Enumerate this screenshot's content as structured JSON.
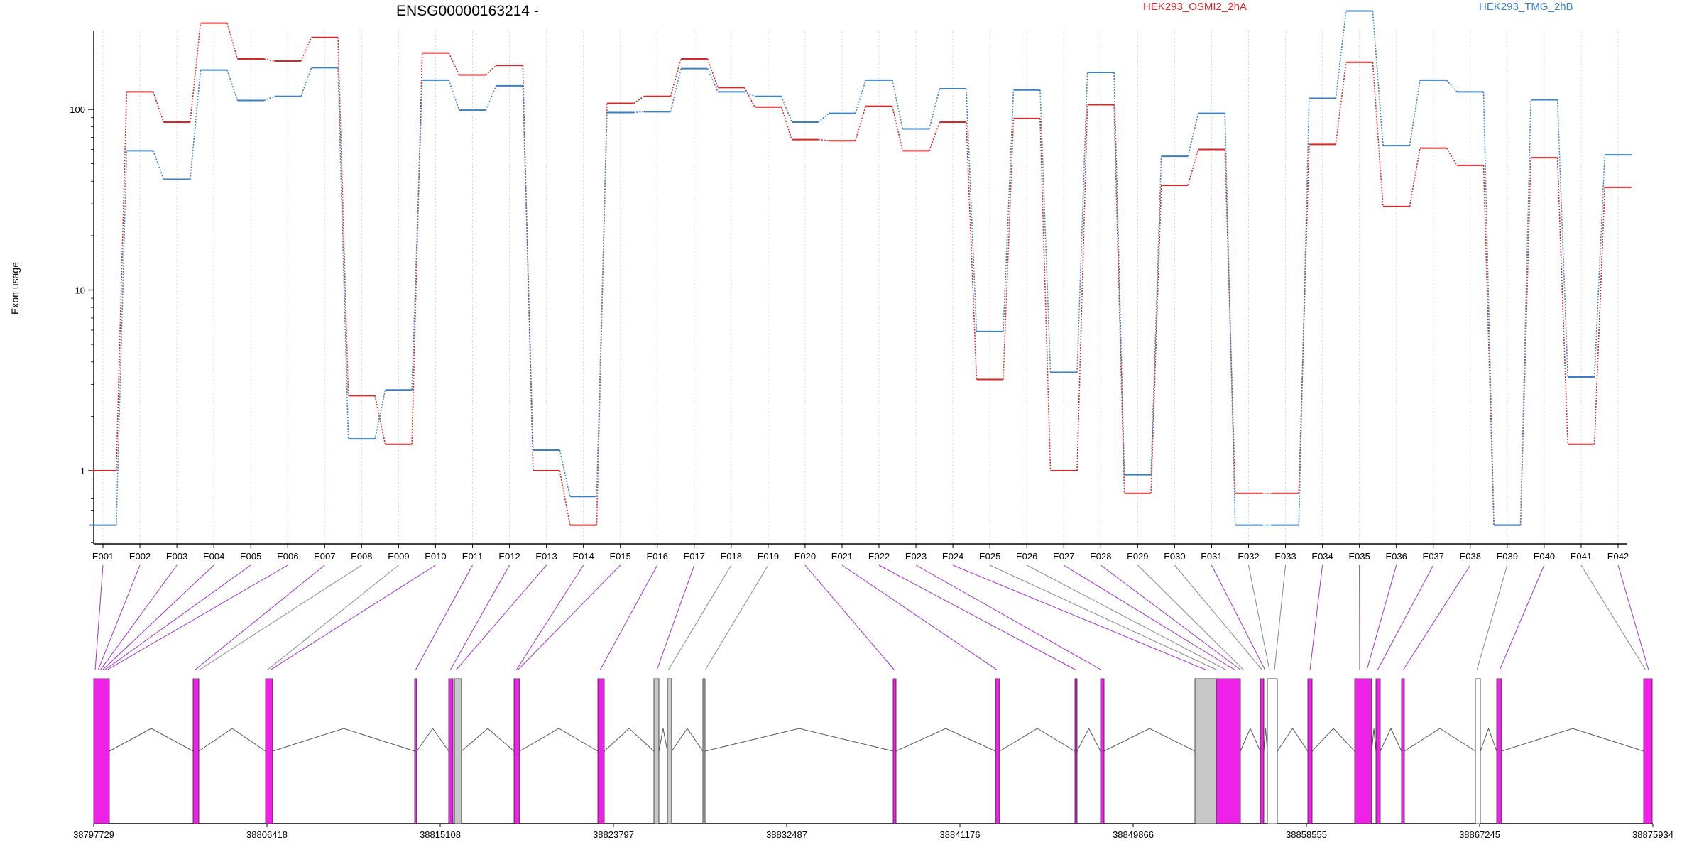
{
  "chart_data": {
    "type": "line",
    "title": "ENSG00000163214 -",
    "ylabel": "Exon usage",
    "y_scale": "log",
    "yticks": [
      "1",
      "10",
      "100"
    ],
    "legend_placement": "top",
    "categories": [
      "E001",
      "E002",
      "E003",
      "E004",
      "E005",
      "E006",
      "E007",
      "E008",
      "E009",
      "E010",
      "E011",
      "E012",
      "E013",
      "E014",
      "E015",
      "E016",
      "E017",
      "E018",
      "E019",
      "E020",
      "E021",
      "E022",
      "E023",
      "E024",
      "E025",
      "E026",
      "E027",
      "E028",
      "E029",
      "E030",
      "E031",
      "E032",
      "E033",
      "E034",
      "E035",
      "E036",
      "E037",
      "E038",
      "E039",
      "E040",
      "E041",
      "E042"
    ],
    "series": [
      {
        "name": "HEK293_OSMI2_2hA",
        "color": "#d62728",
        "values": [
          1.0,
          125,
          85,
          300,
          190,
          185,
          250,
          2.6,
          1.4,
          205,
          155,
          175,
          1.0,
          0.5,
          108,
          118,
          190,
          132,
          103,
          68,
          67,
          104,
          59,
          85,
          3.2,
          89,
          1.0,
          106,
          0.75,
          38,
          60,
          0.75,
          0.75,
          64,
          182,
          29,
          61,
          49,
          0.5,
          54,
          1.4,
          37
        ]
      },
      {
        "name": "HEK293_TMG_2hB",
        "color": "#3a7fc1",
        "values": [
          0.5,
          59,
          41,
          165,
          112,
          118,
          170,
          1.5,
          2.8,
          145,
          99,
          135,
          1.3,
          0.72,
          96,
          97,
          168,
          125,
          118,
          85,
          95,
          145,
          78,
          130,
          5.9,
          128,
          3.5,
          160,
          0.95,
          55,
          95,
          0.5,
          0.5,
          115,
          350,
          63,
          145,
          125,
          0.5,
          113,
          3.3,
          56
        ]
      }
    ],
    "gene_model": {
      "strand": "-",
      "position_labels": [
        "38797729",
        "38806418",
        "38815108",
        "38823797",
        "38832487",
        "38841176",
        "38849866",
        "38858555",
        "38867245",
        "38875934"
      ],
      "colors": {
        "highlighted_exon": "#ee22e6",
        "plain_exon": "#c8c8c8",
        "connector_highlighted": "#a032c8",
        "connector_plain": "#888888"
      }
    }
  }
}
